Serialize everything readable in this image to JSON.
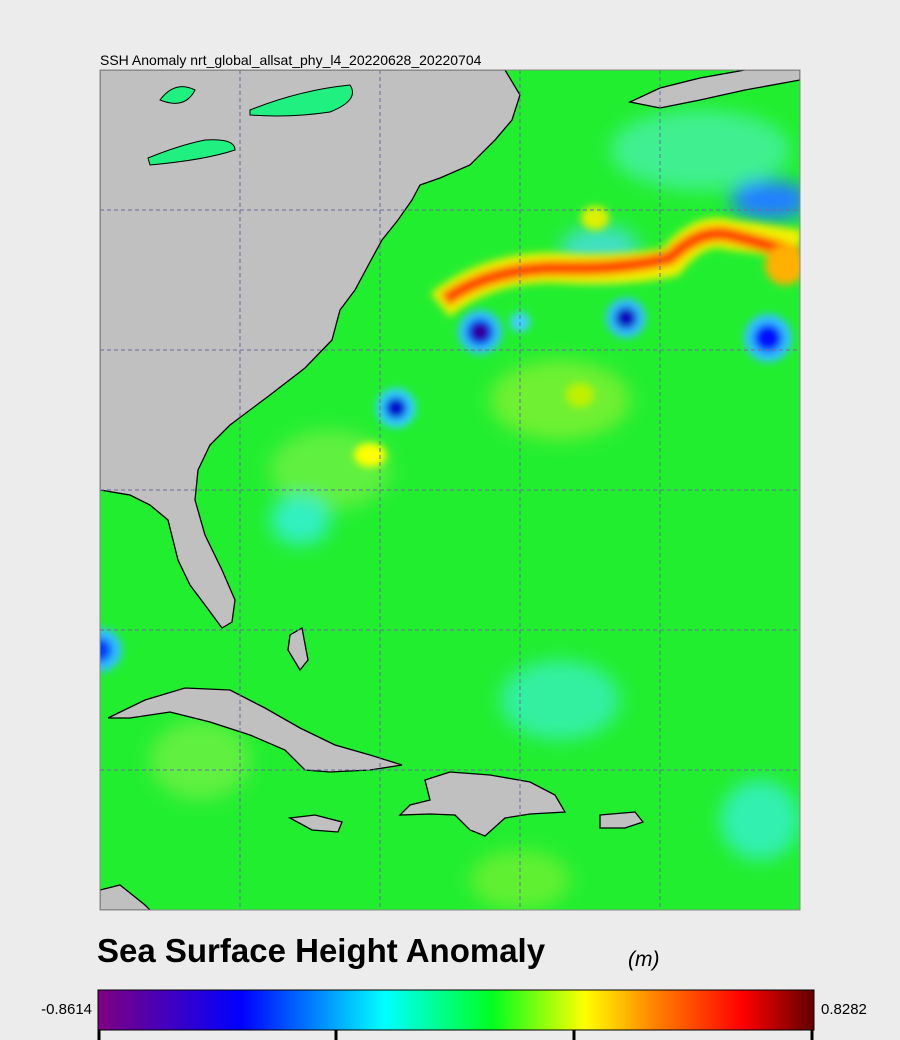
{
  "title": "SSH Anomaly nrt_global_allsat_phy_l4_20220628_20220704",
  "colorbar": {
    "title": "Sea Surface Height Anomaly",
    "unit": "(m)",
    "min": -0.8614,
    "max": 0.8282
  }
}
